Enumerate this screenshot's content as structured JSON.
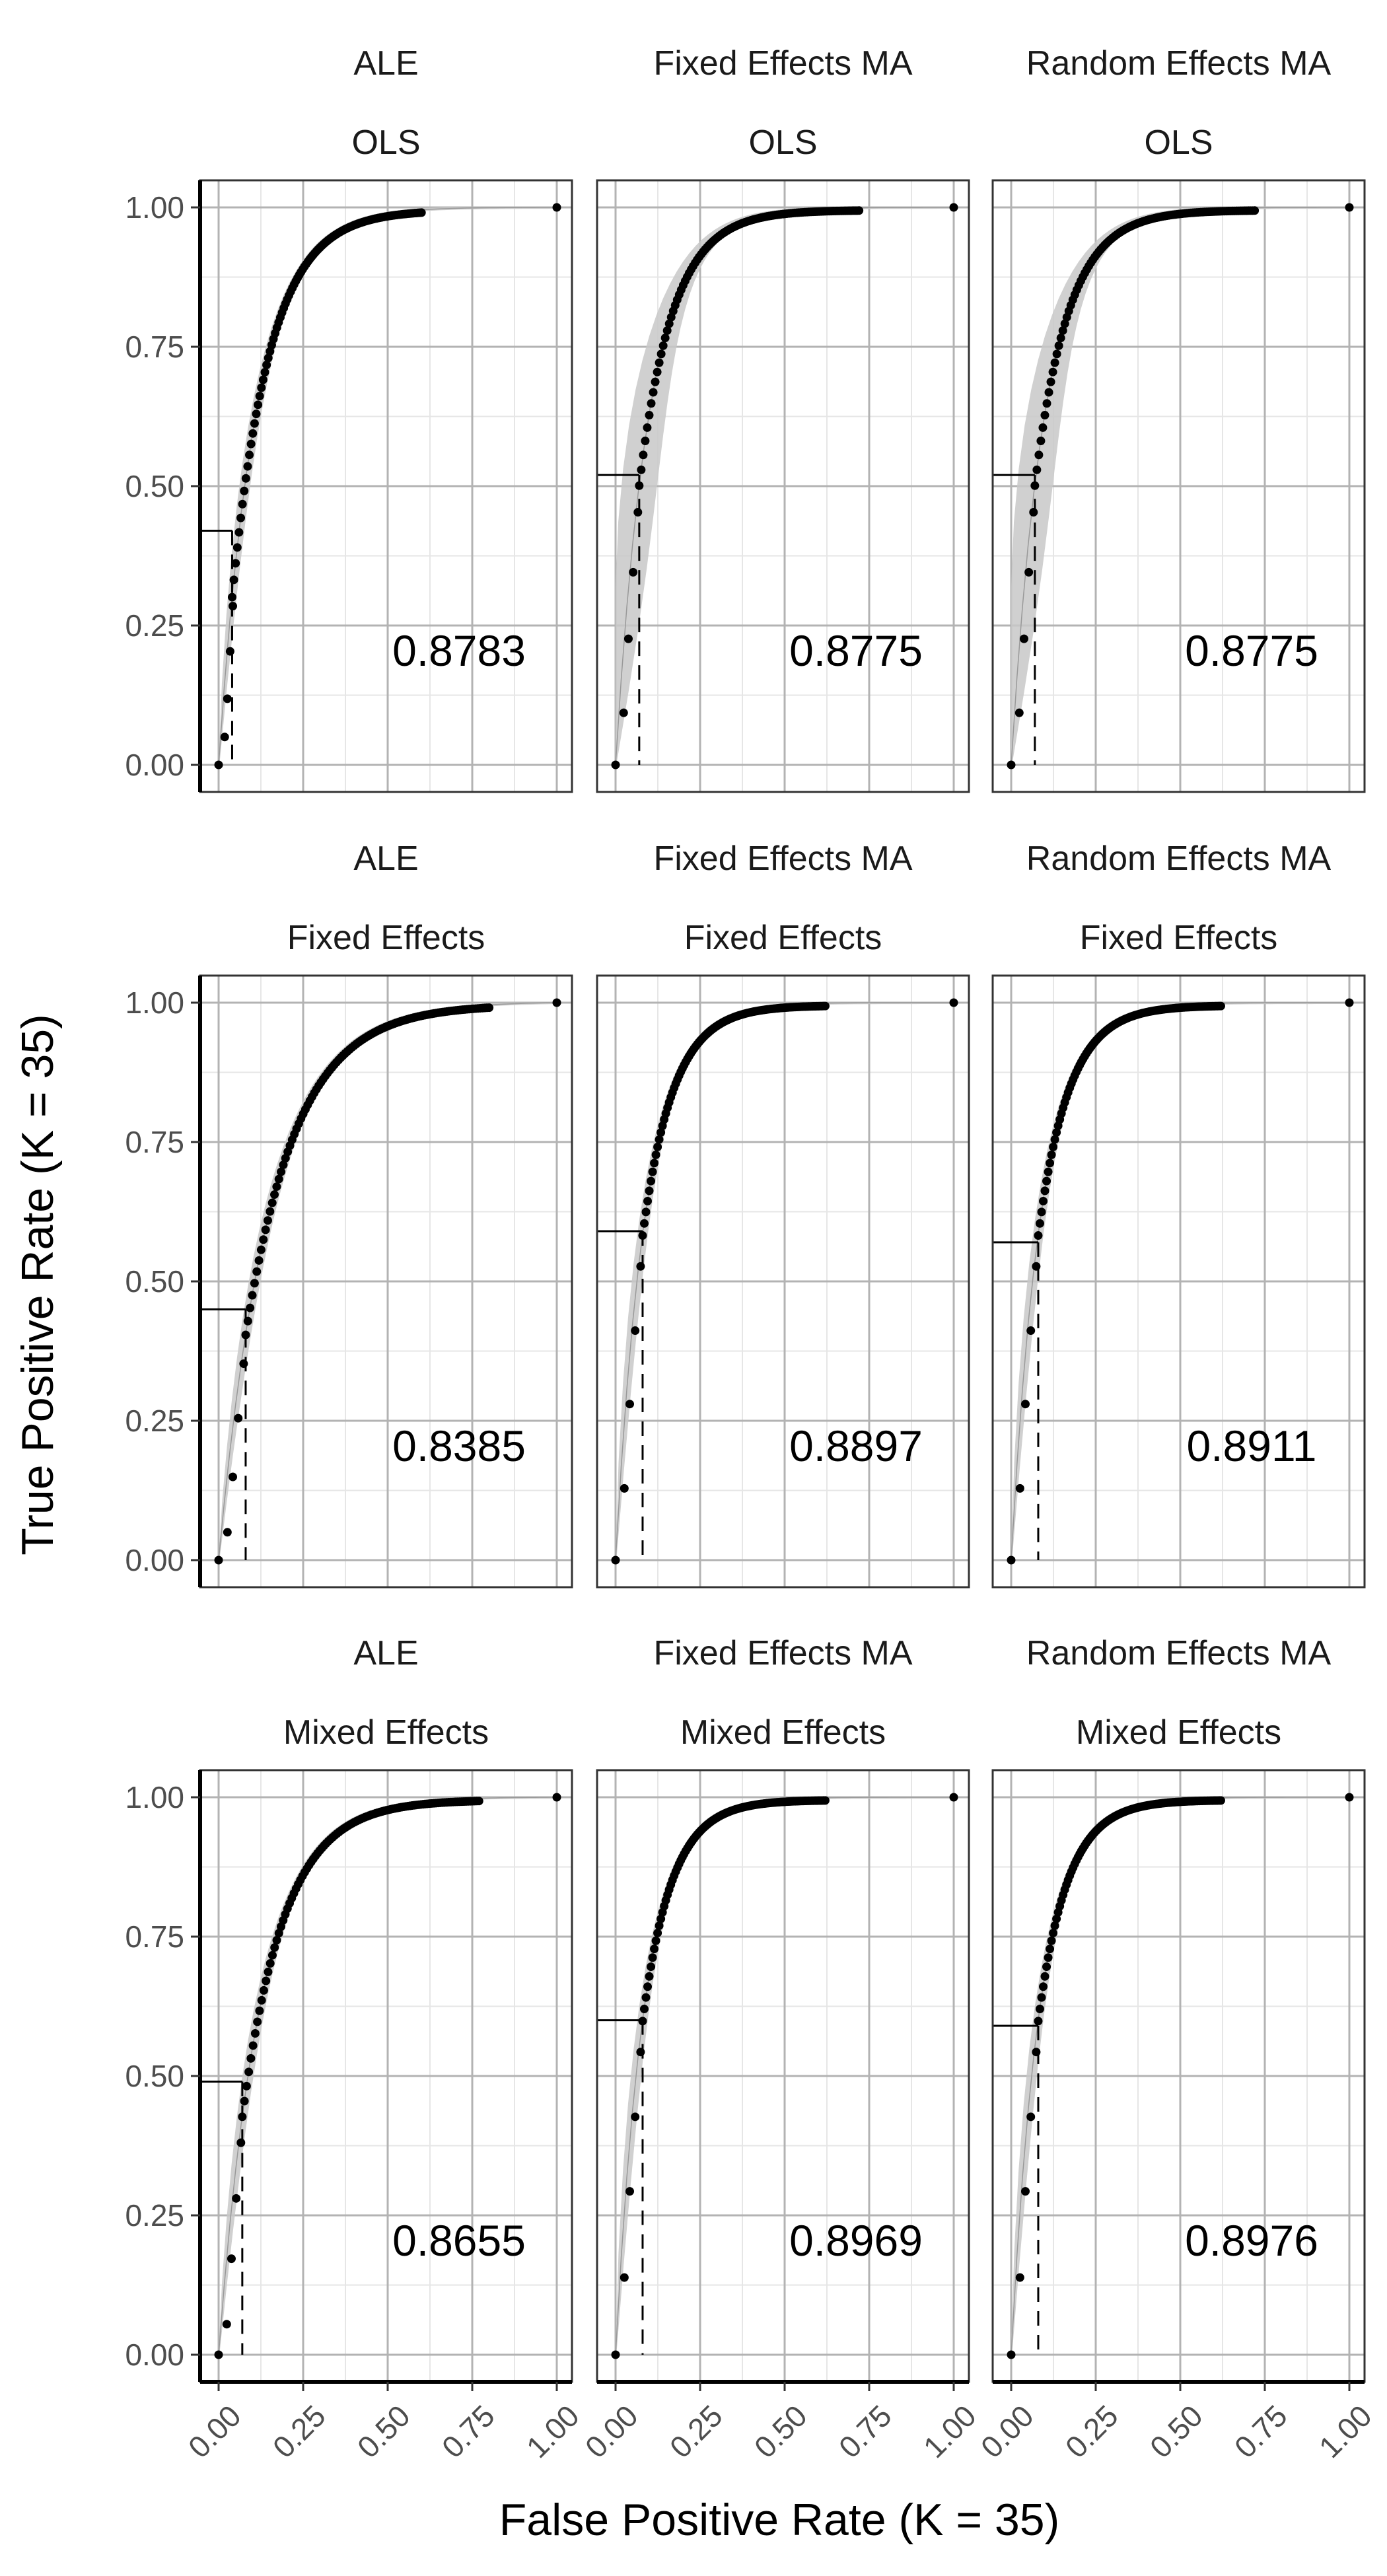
{
  "figure": {
    "xlabel": "False Positive Rate (K = 35)",
    "ylabel": "True Positive Rate (K = 35)"
  },
  "colors": {
    "point": "#000000",
    "band": "#c8c8c8",
    "grid_major": "#b3b3b3",
    "grid_minor": "#e6e6e6",
    "panel_border": "#333333"
  },
  "chart_data": [
    {
      "type": "scatter",
      "meta": "ALE",
      "method": "OLS",
      "auc": "0.8783",
      "cut": {
        "fpr": 0.04,
        "tpr": 0.42
      },
      "band": "narrow",
      "curve": {
        "a": 9.0,
        "fmax": 0.6
      },
      "x": [
        0.0,
        1.0
      ],
      "y": [
        0.0,
        1.0
      ],
      "xlim": [
        0,
        1
      ],
      "ylim": [
        0,
        1
      ],
      "grid": true,
      "xticks": [
        "0.00",
        "0.25",
        "0.50",
        "0.75",
        "1.00"
      ],
      "yticks": [
        "0.00",
        "0.25",
        "0.50",
        "0.75",
        "1.00"
      ]
    },
    {
      "type": "scatter",
      "meta": "Fixed Effects MA",
      "method": "OLS",
      "auc": "0.8775",
      "cut": {
        "fpr": 0.07,
        "tpr": 0.52
      },
      "band": "wide",
      "curve": {
        "a": 10.0,
        "fmax": 0.72
      },
      "x": [
        0.0,
        1.0
      ],
      "y": [
        0.0,
        1.0
      ],
      "xlim": [
        0,
        1
      ],
      "ylim": [
        0,
        1
      ],
      "grid": true,
      "xticks": [
        "0.00",
        "0.25",
        "0.50",
        "0.75",
        "1.00"
      ],
      "yticks": [
        "0.00",
        "0.25",
        "0.50",
        "0.75",
        "1.00"
      ]
    },
    {
      "type": "scatter",
      "meta": "Random Effects MA",
      "method": "OLS",
      "auc": "0.8775",
      "cut": {
        "fpr": 0.07,
        "tpr": 0.52
      },
      "band": "wide",
      "curve": {
        "a": 10.0,
        "fmax": 0.72
      },
      "x": [
        0.0,
        1.0
      ],
      "y": [
        0.0,
        1.0
      ],
      "xlim": [
        0,
        1
      ],
      "ylim": [
        0,
        1
      ],
      "grid": true,
      "xticks": [
        "0.00",
        "0.25",
        "0.50",
        "0.75",
        "1.00"
      ],
      "yticks": [
        "0.00",
        "0.25",
        "0.50",
        "0.75",
        "1.00"
      ]
    },
    {
      "type": "scatter",
      "meta": "ALE",
      "method": "Fixed Effects",
      "auc": "0.8385",
      "cut": {
        "fpr": 0.08,
        "tpr": 0.45
      },
      "band": "narrow",
      "curve": {
        "a": 6.5,
        "fmax": 0.8
      },
      "x": [
        0.0,
        1.0
      ],
      "y": [
        0.0,
        1.0
      ],
      "xlim": [
        0,
        1
      ],
      "ylim": [
        0,
        1
      ],
      "grid": true,
      "xticks": [
        "0.00",
        "0.25",
        "0.50",
        "0.75",
        "1.00"
      ],
      "yticks": [
        "0.00",
        "0.25",
        "0.50",
        "0.75",
        "1.00"
      ]
    },
    {
      "type": "scatter",
      "meta": "Fixed Effects MA",
      "method": "Fixed Effects",
      "auc": "0.8897",
      "cut": {
        "fpr": 0.08,
        "tpr": 0.59
      },
      "band": "narrow",
      "curve": {
        "a": 11.0,
        "fmax": 0.62
      },
      "x": [
        0.0,
        1.0
      ],
      "y": [
        0.0,
        1.0
      ],
      "xlim": [
        0,
        1
      ],
      "ylim": [
        0,
        1
      ],
      "grid": true,
      "xticks": [
        "0.00",
        "0.25",
        "0.50",
        "0.75",
        "1.00"
      ],
      "yticks": [
        "0.00",
        "0.25",
        "0.50",
        "0.75",
        "1.00"
      ]
    },
    {
      "type": "scatter",
      "meta": "Random Effects MA",
      "method": "Fixed Effects",
      "auc": "0.8911",
      "cut": {
        "fpr": 0.08,
        "tpr": 0.57
      },
      "band": "narrow",
      "curve": {
        "a": 11.0,
        "fmax": 0.62
      },
      "x": [
        0.0,
        1.0
      ],
      "y": [
        0.0,
        1.0
      ],
      "xlim": [
        0,
        1
      ],
      "ylim": [
        0,
        1
      ],
      "grid": true,
      "xticks": [
        "0.00",
        "0.25",
        "0.50",
        "0.75",
        "1.00"
      ],
      "yticks": [
        "0.00",
        "0.25",
        "0.50",
        "0.75",
        "1.00"
      ]
    },
    {
      "type": "scatter",
      "meta": "ALE",
      "method": "Mixed Effects",
      "auc": "0.8655",
      "cut": {
        "fpr": 0.07,
        "tpr": 0.49
      },
      "band": "narrow",
      "curve": {
        "a": 8.0,
        "fmax": 0.77
      },
      "x": [
        0.0,
        1.0
      ],
      "y": [
        0.0,
        1.0
      ],
      "xlim": [
        0,
        1
      ],
      "ylim": [
        0,
        1
      ],
      "grid": true,
      "xticks": [
        "0.00",
        "0.25",
        "0.50",
        "0.75",
        "1.00"
      ],
      "yticks": [
        "0.00",
        "0.25",
        "0.50",
        "0.75",
        "1.00"
      ]
    },
    {
      "type": "scatter",
      "meta": "Fixed Effects MA",
      "method": "Mixed Effects",
      "auc": "0.8969",
      "cut": {
        "fpr": 0.08,
        "tpr": 0.6
      },
      "band": "narrow",
      "curve": {
        "a": 11.5,
        "fmax": 0.62
      },
      "x": [
        0.0,
        1.0
      ],
      "y": [
        0.0,
        1.0
      ],
      "xlim": [
        0,
        1
      ],
      "ylim": [
        0,
        1
      ],
      "grid": true,
      "xticks": [
        "0.00",
        "0.25",
        "0.50",
        "0.75",
        "1.00"
      ],
      "yticks": [
        "0.00",
        "0.25",
        "0.50",
        "0.75",
        "1.00"
      ]
    },
    {
      "type": "scatter",
      "meta": "Random Effects MA",
      "method": "Mixed Effects",
      "auc": "0.8976",
      "cut": {
        "fpr": 0.08,
        "tpr": 0.59
      },
      "band": "narrow",
      "curve": {
        "a": 11.5,
        "fmax": 0.62
      },
      "x": [
        0.0,
        1.0
      ],
      "y": [
        0.0,
        1.0
      ],
      "xlim": [
        0,
        1
      ],
      "ylim": [
        0,
        1
      ],
      "grid": true,
      "xticks": [
        "0.00",
        "0.25",
        "0.50",
        "0.75",
        "1.00"
      ],
      "yticks": [
        "0.00",
        "0.25",
        "0.50",
        "0.75",
        "1.00"
      ]
    }
  ]
}
